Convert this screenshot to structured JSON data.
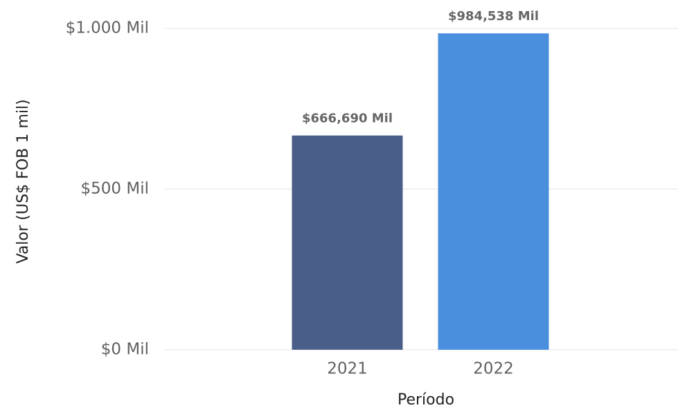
{
  "chart_data": {
    "type": "bar",
    "categories": [
      "2021",
      "2022"
    ],
    "values": [
      666.69,
      984.538
    ],
    "value_labels": [
      "$666,690 Mil",
      "$984,538 Mil"
    ],
    "colors": [
      "#4a5e8a",
      "#4a8fde"
    ],
    "ylim": [
      0,
      1000
    ],
    "yticks": [
      {
        "value": 0,
        "label": "$0 Mil"
      },
      {
        "value": 500,
        "label": "$500 Mil"
      },
      {
        "value": 1000,
        "label": "$1.000 Mil"
      }
    ],
    "grid": true,
    "xlabel": "Período",
    "ylabel": "Valor (US$ FOB 1 mil)"
  }
}
